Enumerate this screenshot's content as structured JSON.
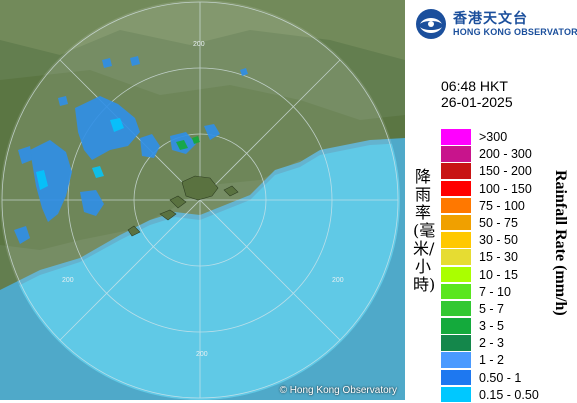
{
  "header": {
    "logo_chinese": "香港天文台",
    "logo_english": "HONG KONG OBSERVATORY"
  },
  "timestamp": {
    "time": "06:48 HKT",
    "date": "26-01-2025"
  },
  "legend": {
    "title_chinese": "降雨率(毫米/小時)",
    "title_english": "Rainfall Rate (mm/h)",
    "items": [
      {
        "range": ">300",
        "color": "#ff00ff"
      },
      {
        "range": "200 - 300",
        "color": "#c8148c"
      },
      {
        "range": "150 - 200",
        "color": "#c81414"
      },
      {
        "range": "100 - 150",
        "color": "#ff0000"
      },
      {
        "range": "75 - 100",
        "color": "#ff7800"
      },
      {
        "range": "50 - 75",
        "color": "#f0a000"
      },
      {
        "range": "30 - 50",
        "color": "#ffc800"
      },
      {
        "range": "15 - 30",
        "color": "#e6dc32"
      },
      {
        "range": "10 - 15",
        "color": "#aaff00"
      },
      {
        "range": "7 - 10",
        "color": "#5ae61e"
      },
      {
        "range": "5 - 7",
        "color": "#32c832"
      },
      {
        "range": "3 - 5",
        "color": "#14aa3c"
      },
      {
        "range": "2 - 3",
        "color": "#14874b"
      },
      {
        "range": "1 - 2",
        "color": "#4a9aff"
      },
      {
        "range": "0.50 - 1",
        "color": "#1e78f0"
      },
      {
        "range": "0.15 - 0.50",
        "color": "#00c8ff"
      }
    ]
  },
  "map": {
    "range_labels": [
      "200",
      "200",
      "200",
      "200"
    ],
    "copyright": "© Hong Kong Observatory"
  }
}
